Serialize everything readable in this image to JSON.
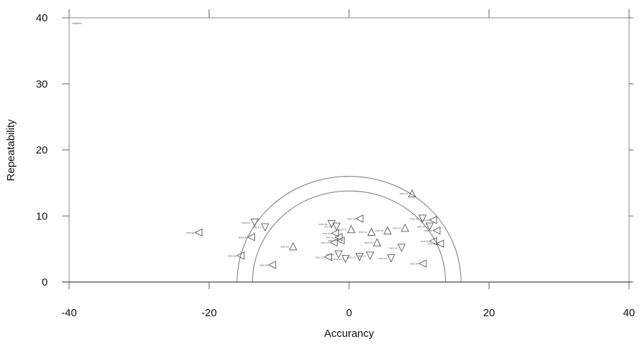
{
  "chart_data": {
    "type": "scatter",
    "title": "",
    "corner_note": "TARGETS",
    "xlabel": "Accurancy",
    "ylabel": "Repeatability",
    "xlim": [
      -40,
      40
    ],
    "ylim": [
      0,
      40
    ],
    "xticks": [
      -40,
      -20,
      0,
      20,
      40
    ],
    "yticks": [
      0,
      10,
      20,
      30,
      40
    ],
    "grid": false,
    "reference_semicircles": [
      {
        "center": [
          0,
          0
        ],
        "radius": 13.8
      },
      {
        "center": [
          0,
          0
        ],
        "radius": 16.0
      }
    ],
    "points": [
      {
        "x": -21.5,
        "y": 7.5,
        "marker": "left",
        "label": "DVO 01"
      },
      {
        "x": -15.5,
        "y": 4.0,
        "marker": "left",
        "label": "DVO 02"
      },
      {
        "x": -13.5,
        "y": 9.0,
        "marker": "down",
        "label": "DVO 03"
      },
      {
        "x": -12.0,
        "y": 8.3,
        "marker": "down",
        "label": "DVO 04"
      },
      {
        "x": -14.0,
        "y": 6.8,
        "marker": "left",
        "label": "DVO 05"
      },
      {
        "x": -11.0,
        "y": 2.6,
        "marker": "left",
        "label": "DVO 06"
      },
      {
        "x": -8.0,
        "y": 5.4,
        "marker": "up",
        "label": "DVO 07"
      },
      {
        "x": -2.5,
        "y": 8.8,
        "marker": "down",
        "label": "DVO 08"
      },
      {
        "x": -1.8,
        "y": 8.4,
        "marker": "down",
        "label": "DVO 09"
      },
      {
        "x": -2.0,
        "y": 7.4,
        "marker": "left",
        "label": "DVO 10"
      },
      {
        "x": -1.5,
        "y": 6.8,
        "marker": "left",
        "label": "DVO 11"
      },
      {
        "x": -1.2,
        "y": 6.3,
        "marker": "left",
        "label": "DVO 12"
      },
      {
        "x": -2.2,
        "y": 6.0,
        "marker": "left",
        "label": "DVO 13"
      },
      {
        "x": -1.5,
        "y": 4.2,
        "marker": "down",
        "label": "DVO 14"
      },
      {
        "x": -3.0,
        "y": 3.8,
        "marker": "left",
        "label": "DVO 15"
      },
      {
        "x": -0.5,
        "y": 3.5,
        "marker": "down",
        "label": "DVO 16"
      },
      {
        "x": 0.3,
        "y": 8.0,
        "marker": "up",
        "label": "DVO 17"
      },
      {
        "x": 1.5,
        "y": 9.6,
        "marker": "left",
        "label": "DVO 18"
      },
      {
        "x": 3.2,
        "y": 7.6,
        "marker": "up",
        "label": "DVO 19"
      },
      {
        "x": 5.5,
        "y": 7.8,
        "marker": "up",
        "label": "DVO 20"
      },
      {
        "x": 4.0,
        "y": 6.0,
        "marker": "up",
        "label": "DVO 21"
      },
      {
        "x": 3.0,
        "y": 4.0,
        "marker": "down",
        "label": "DVO 22"
      },
      {
        "x": 1.5,
        "y": 3.8,
        "marker": "down",
        "label": "DVO 23"
      },
      {
        "x": 6.0,
        "y": 3.6,
        "marker": "down",
        "label": "DVO 24"
      },
      {
        "x": 8.0,
        "y": 8.2,
        "marker": "up",
        "label": "DVO 25"
      },
      {
        "x": 7.5,
        "y": 5.2,
        "marker": "down",
        "label": "DVO 26"
      },
      {
        "x": 9.0,
        "y": 13.4,
        "marker": "up",
        "label": "DVO 27"
      },
      {
        "x": 10.5,
        "y": 9.6,
        "marker": "down",
        "label": "DVO 28"
      },
      {
        "x": 12.0,
        "y": 9.4,
        "marker": "left",
        "label": "DVO 29"
      },
      {
        "x": 11.5,
        "y": 8.4,
        "marker": "down",
        "label": "DVO 30"
      },
      {
        "x": 12.5,
        "y": 7.8,
        "marker": "left",
        "label": "DVO 31"
      },
      {
        "x": 12.0,
        "y": 6.2,
        "marker": "left",
        "label": "DVO 32"
      },
      {
        "x": 13.0,
        "y": 5.8,
        "marker": "left",
        "label": "DVO 33"
      },
      {
        "x": 10.5,
        "y": 2.8,
        "marker": "left",
        "label": "DVO 34"
      }
    ]
  }
}
